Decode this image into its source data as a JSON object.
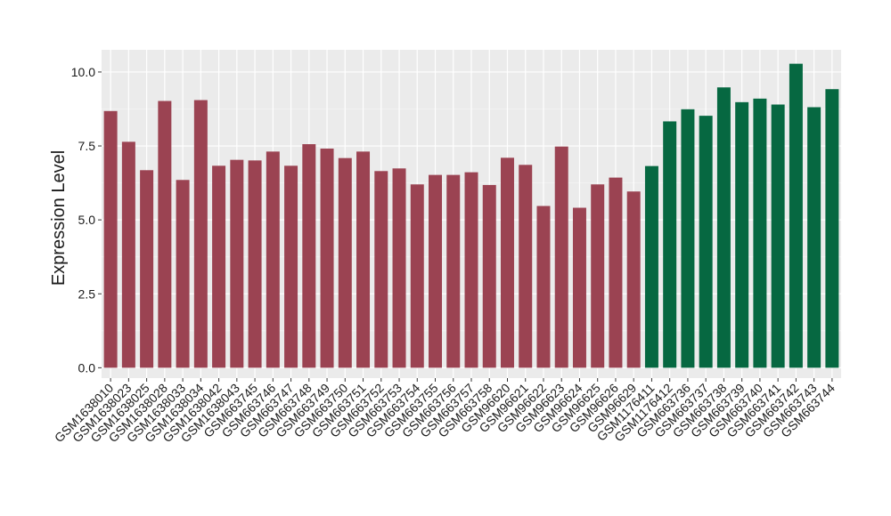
{
  "chart_data": {
    "type": "bar",
    "ylabel": "Expression Level",
    "ylim": [
      -0.35,
      10.75
    ],
    "yticks": [
      "0.0",
      "2.5",
      "5.0",
      "7.5",
      "10.0"
    ],
    "ytick_values": [
      0,
      2.5,
      5,
      7.5,
      10
    ],
    "grid": true,
    "categories": [
      "GSM1638010",
      "GSM1638023",
      "GSM1638025",
      "GSM1638028",
      "GSM1638033",
      "GSM1638034",
      "GSM1638042",
      "GSM1638043",
      "GSM663745",
      "GSM663746",
      "GSM663747",
      "GSM663748",
      "GSM663749",
      "GSM663750",
      "GSM663751",
      "GSM663752",
      "GSM663753",
      "GSM663754",
      "GSM663755",
      "GSM663756",
      "GSM663757",
      "GSM663758",
      "GSM96620",
      "GSM96621",
      "GSM96622",
      "GSM96623",
      "GSM96624",
      "GSM96625",
      "GSM96626",
      "GSM96629",
      "GSM1176411",
      "GSM1176412",
      "GSM663736",
      "GSM663737",
      "GSM663738",
      "GSM663739",
      "GSM663740",
      "GSM663741",
      "GSM663742",
      "GSM663743",
      "GSM663744"
    ],
    "values": [
      8.68,
      7.64,
      6.68,
      9.02,
      6.35,
      9.05,
      6.83,
      7.03,
      7.01,
      7.31,
      6.83,
      7.56,
      7.41,
      7.09,
      7.31,
      6.65,
      6.74,
      6.2,
      6.52,
      6.52,
      6.61,
      6.18,
      7.1,
      6.86,
      5.47,
      7.48,
      5.41,
      6.2,
      6.43,
      5.96,
      6.82,
      8.33,
      8.74,
      8.52,
      9.48,
      8.98,
      9.1,
      8.9,
      10.28,
      8.81,
      9.42
    ],
    "groups": [
      0,
      0,
      0,
      0,
      0,
      0,
      0,
      0,
      0,
      0,
      0,
      0,
      0,
      0,
      0,
      0,
      0,
      0,
      0,
      0,
      0,
      0,
      0,
      0,
      0,
      0,
      0,
      0,
      0,
      0,
      1,
      1,
      1,
      1,
      1,
      1,
      1,
      1,
      1,
      1,
      1
    ],
    "colors": {
      "group_0": "#9b4352",
      "group_1": "#066841",
      "panel_bg": "#ebebeb",
      "grid_major": "#ffffff",
      "grid_minor": "#f5f5f5"
    }
  }
}
